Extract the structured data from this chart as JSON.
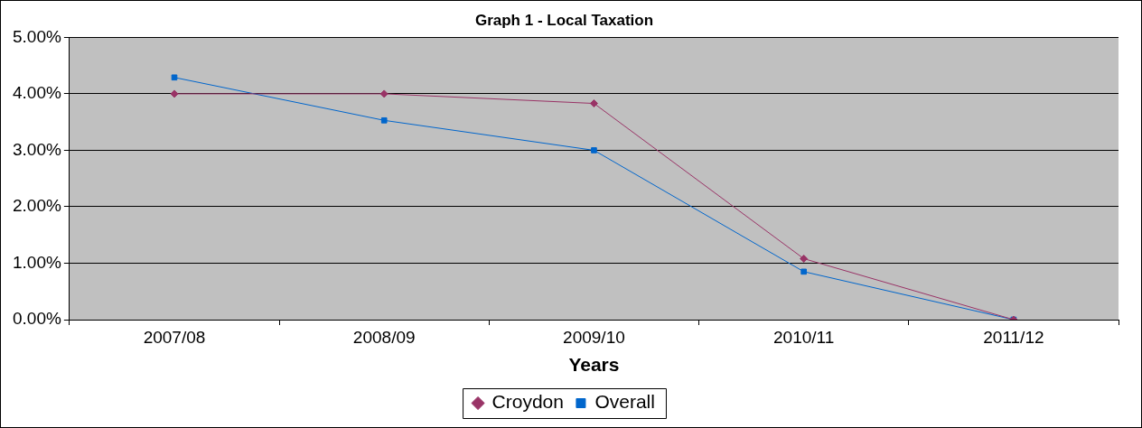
{
  "chart_data": {
    "type": "line",
    "title": "Graph 1 - Local Taxation",
    "xlabel": "Years",
    "categories": [
      "2007/08",
      "2008/09",
      "2009/10",
      "2010/11",
      "2011/12"
    ],
    "series": [
      {
        "name": "Croydon",
        "color": "#993366",
        "marker": "diamond",
        "values": [
          4.0,
          4.0,
          3.83,
          1.08,
          0.0
        ]
      },
      {
        "name": "Overall",
        "color": "#0066cc",
        "marker": "square",
        "values": [
          4.29,
          3.53,
          3.0,
          0.85,
          0.0
        ]
      }
    ],
    "ylim": [
      0,
      5
    ],
    "yticks": [
      {
        "value": 0,
        "label": "0.00%"
      },
      {
        "value": 1,
        "label": "1.00%"
      },
      {
        "value": 2,
        "label": "2.00%"
      },
      {
        "value": 3,
        "label": "3.00%"
      },
      {
        "value": 4,
        "label": "4.00%"
      },
      {
        "value": 5,
        "label": "5.00%"
      }
    ],
    "grid": "y",
    "legend": "bottom",
    "line_style": "solid"
  }
}
